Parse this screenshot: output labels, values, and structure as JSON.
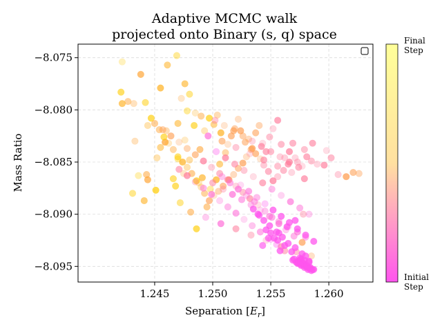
{
  "chart_data": {
    "type": "scatter",
    "title_lines": [
      "Adaptive MCMC walk",
      "projected onto Binary (s, q) space"
    ],
    "xlabel_prefix": "Separation [",
    "xlabel_var": "E",
    "xlabel_sub": "r",
    "xlabel_suffix": "]",
    "ylabel": "Mass Ratio",
    "xlim": [
      1.2384,
      1.2638
    ],
    "ylim": [
      -8.0965,
      -8.0737
    ],
    "xticks": [
      1.245,
      1.25,
      1.255,
      1.26
    ],
    "xtick_labels": [
      "1.245",
      "1.250",
      "1.255",
      "1.260"
    ],
    "yticks": [
      -8.075,
      -8.08,
      -8.085,
      -8.09,
      -8.095
    ],
    "ytick_labels": [
      "−8.075",
      "−8.080",
      "−8.085",
      "−8.090",
      "−8.095"
    ],
    "grid": true,
    "legend": "top-right (empty)",
    "colorbar": {
      "top_label": [
        "Final",
        "Step"
      ],
      "bottom_label": [
        "Initial",
        "Step"
      ],
      "color_start": "#ff55ee",
      "color_mid": "#ffe0a0",
      "color_end": "#ffff99"
    },
    "series": [
      {
        "x": [
          1.2422,
          1.2421,
          1.2427,
          1.2432,
          1.2438,
          1.2442,
          1.2444,
          1.2455,
          1.2461,
          1.2469,
          1.2473,
          1.2476,
          1.248,
          1.2433,
          1.2422,
          1.2443,
          1.2452,
          1.2459,
          1.247,
          1.2478,
          1.2485,
          1.2441,
          1.2431,
          1.2436,
          1.2444,
          1.2455,
          1.246,
          1.2451,
          1.2466,
          1.247,
          1.2476,
          1.2484,
          1.249,
          1.2493,
          1.2497,
          1.2501,
          1.2504,
          1.2507,
          1.2489,
          1.248,
          1.2475,
          1.2468,
          1.2472,
          1.2488,
          1.2486,
          1.2495,
          1.2498,
          1.2503,
          1.2506,
          1.2511,
          1.2513,
          1.2516,
          1.2519,
          1.2522,
          1.2524,
          1.2528,
          1.2531,
          1.2534,
          1.2537,
          1.254,
          1.2543,
          1.2546,
          1.2549,
          1.2552,
          1.2556,
          1.2559,
          1.2562,
          1.2566,
          1.2569,
          1.2573,
          1.2577,
          1.2581,
          1.2585,
          1.259,
          1.2596,
          1.2602,
          1.2608,
          1.2615,
          1.2621,
          1.2626,
          1.2598,
          1.2586,
          1.2579,
          1.2571,
          1.2565,
          1.2561,
          1.2556,
          1.2552,
          1.2548,
          1.2544,
          1.2541,
          1.2537,
          1.2533,
          1.2529,
          1.2526,
          1.2522,
          1.2518,
          1.2514,
          1.2509,
          1.2505,
          1.2501,
          1.2497,
          1.2493,
          1.249,
          1.2486,
          1.2482,
          1.2478,
          1.2474,
          1.247,
          1.2466,
          1.2462,
          1.2458,
          1.2454,
          1.245,
          1.2447,
          1.2481,
          1.2494,
          1.2507,
          1.252,
          1.2533,
          1.2546,
          1.2559,
          1.2572,
          1.2585,
          1.2577,
          1.257,
          1.2563,
          1.2557,
          1.2551,
          1.2545,
          1.2539,
          1.2532,
          1.2526,
          1.252,
          1.2513,
          1.2506,
          1.2499,
          1.2492,
          1.2485,
          1.2478,
          1.2471,
          1.2464,
          1.2457,
          1.245,
          1.2491,
          1.25,
          1.2509,
          1.2517,
          1.2525,
          1.2533,
          1.2541,
          1.2549,
          1.2557,
          1.2565,
          1.2573,
          1.258,
          1.2503,
          1.2511,
          1.2519,
          1.2527,
          1.2535,
          1.2543,
          1.2551,
          1.2559,
          1.2567,
          1.2575,
          1.2583,
          1.2496,
          1.2508,
          1.252,
          1.2532,
          1.2544,
          1.2556,
          1.2568,
          1.2579,
          1.2562,
          1.2555,
          1.2548,
          1.2541,
          1.2534,
          1.2527,
          1.252,
          1.2513,
          1.2506,
          1.2499,
          1.2492,
          1.2485,
          1.2478,
          1.2471,
          1.2502,
          1.251,
          1.2518,
          1.2526,
          1.2534,
          1.2542,
          1.255,
          1.2558,
          1.2566,
          1.2574,
          1.2578,
          1.2571,
          1.2564,
          1.2557,
          1.255,
          1.2543,
          1.2536,
          1.2529,
          1.2522,
          1.2515,
          1.2508,
          1.2524,
          1.2531,
          1.2538,
          1.2545,
          1.2552,
          1.2559,
          1.2566,
          1.2573,
          1.258,
          1.2587,
          1.2569,
          1.2576,
          1.2583,
          1.2572,
          1.2574,
          1.2576,
          1.2578,
          1.258,
          1.2582,
          1.2584,
          1.2586,
          1.2575,
          1.2577,
          1.2579,
          1.2581,
          1.2583,
          1.2573,
          1.2576,
          1.2579,
          1.2582,
          1.2585,
          1.257,
          1.2574,
          1.2578,
          1.2581,
          1.2584,
          1.2587,
          1.2575,
          1.2579,
          1.2583,
          1.2577,
          1.258,
          1.2568,
          1.2571,
          1.2565,
          1.256,
          1.2555,
          1.2549,
          1.2544,
          1.2539,
          1.2546,
          1.2553,
          1.2562,
          1.2556,
          1.255,
          1.2558,
          1.2535,
          1.254
        ],
        "y": [
          -8.0754,
          -8.0783,
          -8.0792,
          -8.0794,
          -8.0766,
          -8.0793,
          -8.0815,
          -8.0779,
          -8.0757,
          -8.0748,
          -8.0789,
          -8.0775,
          -8.0785,
          -8.083,
          -8.0794,
          -8.0862,
          -8.0846,
          -8.0831,
          -8.0813,
          -8.0801,
          -8.0803,
          -8.0887,
          -8.088,
          -8.0863,
          -8.0867,
          -8.0836,
          -8.082,
          -8.0877,
          -8.0866,
          -8.0847,
          -8.0829,
          -8.0815,
          -8.0806,
          -8.082,
          -8.0808,
          -8.0814,
          -8.0805,
          -8.0822,
          -8.0838,
          -8.0848,
          -8.0861,
          -8.0873,
          -8.0889,
          -8.087,
          -8.0914,
          -8.0893,
          -8.0876,
          -8.0867,
          -8.0852,
          -8.0841,
          -8.0833,
          -8.0825,
          -8.0818,
          -8.0809,
          -8.082,
          -8.0831,
          -8.0828,
          -8.0837,
          -8.0822,
          -8.0815,
          -8.0832,
          -8.084,
          -8.0826,
          -8.0818,
          -8.081,
          -8.0833,
          -8.0846,
          -8.084,
          -8.0832,
          -8.085,
          -8.0854,
          -8.0845,
          -8.0849,
          -8.0852,
          -8.0853,
          -8.0846,
          -8.0862,
          -8.0864,
          -8.086,
          -8.0861,
          -8.0839,
          -8.0832,
          -8.0838,
          -8.0846,
          -8.0852,
          -8.0858,
          -8.0864,
          -8.0868,
          -8.0859,
          -8.0853,
          -8.0847,
          -8.0842,
          -8.0838,
          -8.0845,
          -8.0851,
          -8.0856,
          -8.0862,
          -8.0867,
          -8.0873,
          -8.0878,
          -8.0882,
          -8.0887,
          -8.088,
          -8.0874,
          -8.0868,
          -8.0861,
          -8.0855,
          -8.085,
          -8.0845,
          -8.0838,
          -8.0832,
          -8.0826,
          -8.0819,
          -8.0813,
          -8.0808,
          -8.0898,
          -8.0903,
          -8.0909,
          -8.0914,
          -8.092,
          -8.0925,
          -8.0931,
          -8.0936,
          -8.094,
          -8.0927,
          -8.0921,
          -8.0915,
          -8.0909,
          -8.0903,
          -8.0897,
          -8.0891,
          -8.0885,
          -8.0879,
          -8.0873,
          -8.0867,
          -8.0861,
          -8.0855,
          -8.0849,
          -8.0843,
          -8.0837,
          -8.0831,
          -8.0825,
          -8.0819,
          -8.0813,
          -8.0865,
          -8.087,
          -8.0876,
          -8.0881,
          -8.0886,
          -8.0891,
          -8.0896,
          -8.0902,
          -8.0907,
          -8.0912,
          -8.0917,
          -8.0922,
          -8.084,
          -8.0846,
          -8.0852,
          -8.0858,
          -8.0864,
          -8.087,
          -8.0876,
          -8.0882,
          -8.0888,
          -8.0894,
          -8.09,
          -8.0825,
          -8.083,
          -8.0836,
          -8.0842,
          -8.0848,
          -8.0854,
          -8.086,
          -8.0866,
          -8.0935,
          -8.0929,
          -8.0923,
          -8.0917,
          -8.0911,
          -8.0905,
          -8.0899,
          -8.0893,
          -8.0887,
          -8.0881,
          -8.0875,
          -8.0869,
          -8.0863,
          -8.0857,
          -8.081,
          -8.0815,
          -8.082,
          -8.0825,
          -8.083,
          -8.0835,
          -8.084,
          -8.0845,
          -8.085,
          -8.0855,
          -8.09,
          -8.0906,
          -8.0912,
          -8.0918,
          -8.0924,
          -8.093,
          -8.0888,
          -8.0882,
          -8.0876,
          -8.087,
          -8.0864,
          -8.0872,
          -8.0878,
          -8.0884,
          -8.089,
          -8.0896,
          -8.0902,
          -8.0908,
          -8.0914,
          -8.092,
          -8.0926,
          -8.0944,
          -8.0943,
          -8.0945,
          -8.0946,
          -8.0947,
          -8.0948,
          -8.0949,
          -8.095,
          -8.0951,
          -8.0952,
          -8.0953,
          -8.0944,
          -8.0946,
          -8.0948,
          -8.095,
          -8.0952,
          -8.0947,
          -8.0949,
          -8.0951,
          -8.0953,
          -8.0954,
          -8.0943,
          -8.0945,
          -8.0947,
          -8.0949,
          -8.0951,
          -8.0953,
          -8.0942,
          -8.0944,
          -8.0946,
          -8.0938,
          -8.094,
          -8.0936,
          -8.0932,
          -8.0928,
          -8.0922,
          -8.0917,
          -8.0911,
          -8.0906,
          -8.09,
          -8.0915,
          -8.0923,
          -8.093,
          -8.0925,
          -8.0918,
          -8.0935,
          -8.0895,
          -8.0901
        ],
        "step": [
          0.98,
          0.95,
          0.96,
          0.93,
          0.9,
          0.92,
          0.88,
          0.97,
          0.94,
          0.86,
          0.9,
          0.85,
          0.83,
          0.87,
          0.94,
          0.96,
          0.91,
          0.84,
          0.82,
          0.8,
          0.79,
          0.88,
          0.92,
          0.95,
          0.9,
          0.85,
          0.78,
          0.89,
          0.83,
          0.77,
          0.76,
          0.74,
          0.72,
          0.7,
          0.68,
          0.66,
          0.65,
          0.63,
          0.75,
          0.79,
          0.81,
          0.8,
          0.86,
          0.73,
          0.92,
          0.81,
          0.74,
          0.7,
          0.66,
          0.62,
          0.6,
          0.58,
          0.57,
          0.56,
          0.55,
          0.54,
          0.53,
          0.52,
          0.51,
          0.5,
          0.49,
          0.48,
          0.47,
          0.46,
          0.45,
          0.44,
          0.43,
          0.42,
          0.41,
          0.42,
          0.43,
          0.44,
          0.45,
          0.46,
          0.47,
          0.48,
          0.49,
          0.5,
          0.51,
          0.52,
          0.4,
          0.41,
          0.42,
          0.43,
          0.44,
          0.45,
          0.46,
          0.47,
          0.48,
          0.49,
          0.5,
          0.51,
          0.52,
          0.53,
          0.54,
          0.55,
          0.56,
          0.57,
          0.58,
          0.59,
          0.6,
          0.61,
          0.62,
          0.63,
          0.64,
          0.65,
          0.66,
          0.67,
          0.68,
          0.69,
          0.7,
          0.71,
          0.72,
          0.73,
          0.74,
          0.75,
          0.3,
          0.33,
          0.36,
          0.39,
          0.42,
          0.45,
          0.48,
          0.51,
          0.54,
          0.25,
          0.27,
          0.29,
          0.31,
          0.33,
          0.35,
          0.37,
          0.39,
          0.41,
          0.43,
          0.45,
          0.47,
          0.49,
          0.51,
          0.53,
          0.55,
          0.57,
          0.59,
          0.61,
          0.63,
          0.38,
          0.36,
          0.34,
          0.32,
          0.3,
          0.28,
          0.26,
          0.24,
          0.22,
          0.2,
          0.18,
          0.16,
          0.44,
          0.42,
          0.4,
          0.38,
          0.36,
          0.34,
          0.32,
          0.3,
          0.28,
          0.26,
          0.24,
          0.5,
          0.48,
          0.46,
          0.44,
          0.42,
          0.4,
          0.38,
          0.36,
          0.15,
          0.17,
          0.19,
          0.21,
          0.23,
          0.25,
          0.27,
          0.29,
          0.31,
          0.33,
          0.35,
          0.37,
          0.39,
          0.41,
          0.55,
          0.53,
          0.51,
          0.49,
          0.47,
          0.45,
          0.43,
          0.41,
          0.39,
          0.37,
          0.14,
          0.12,
          0.13,
          0.15,
          0.17,
          0.19,
          0.21,
          0.23,
          0.25,
          0.27,
          0.29,
          0.2,
          0.18,
          0.16,
          0.14,
          0.12,
          0.1,
          0.09,
          0.08,
          0.07,
          0.06,
          0.05,
          0.04,
          0.03,
          0.05,
          0.04,
          0.03,
          0.02,
          0.01,
          0.0,
          0.02,
          0.03,
          0.01,
          0.0,
          0.02,
          0.01,
          0.0,
          0.03,
          0.02,
          0.01,
          0.0,
          0.02,
          0.04,
          0.03,
          0.01,
          0.0,
          0.02,
          0.01,
          0.03,
          0.02,
          0.01,
          0.06,
          0.05,
          0.07,
          0.08,
          0.09,
          0.1,
          0.11,
          0.12,
          0.13,
          0.14,
          0.09,
          0.07,
          0.06,
          0.08,
          0.1,
          0.05,
          0.15,
          0.13
        ]
      }
    ]
  }
}
